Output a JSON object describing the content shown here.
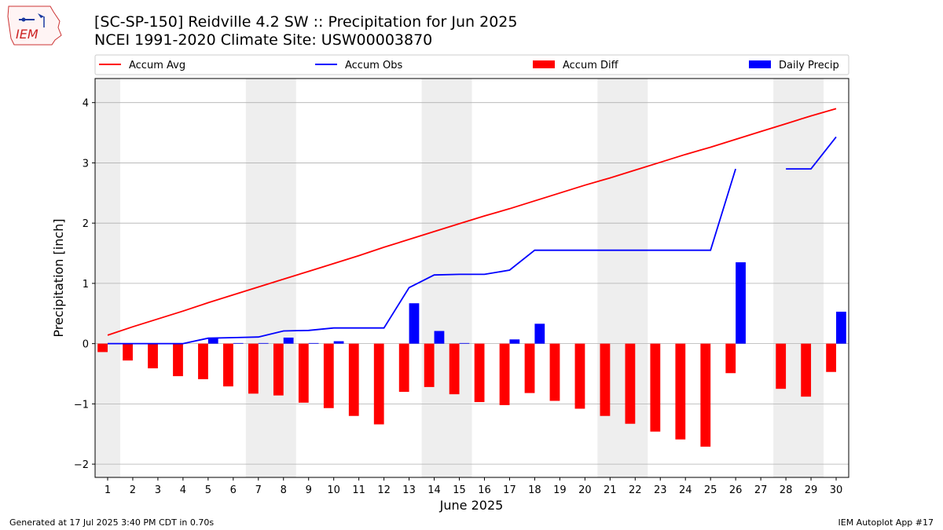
{
  "header": {
    "title": "[SC-SP-150] Reidville 4.2 SW :: Precipitation for Jun 2025",
    "subtitle": "NCEI 1991-2020 Climate Site: USW00003870"
  },
  "logo": {
    "text": "IEM"
  },
  "footer": {
    "generated": "Generated at 17 Jul 2025 3:40 PM CDT in 0.70s",
    "app": "IEM Autoplot App #17"
  },
  "colors": {
    "accum_avg": "#ff0000",
    "accum_obs": "#0000ff",
    "accum_diff": "#ff0000",
    "daily_precip": "#0000ff",
    "weekend_shade": "#eeeeee",
    "grid": "#b0b0b0"
  },
  "chart_data": {
    "type": "bar",
    "xlabel": "June 2025",
    "ylabel": "Precipitation [inch]",
    "xlim": [
      0.5,
      30.5
    ],
    "ylim": [
      -2.22,
      4.4
    ],
    "grid": "horizontal",
    "legend_placement": "top",
    "x": [
      1,
      2,
      3,
      4,
      5,
      6,
      7,
      8,
      9,
      10,
      11,
      12,
      13,
      14,
      15,
      16,
      17,
      18,
      19,
      20,
      21,
      22,
      23,
      24,
      25,
      26,
      27,
      28,
      29,
      30
    ],
    "x_tick_labels": [
      "1",
      "2",
      "3",
      "4",
      "5",
      "6",
      "7",
      "8",
      "9",
      "10",
      "11",
      "12",
      "13",
      "14",
      "15",
      "16",
      "17",
      "18",
      "19",
      "20",
      "21",
      "22",
      "23",
      "24",
      "25",
      "26",
      "27",
      "28",
      "29",
      "30"
    ],
    "y_ticks": [
      -2,
      -1,
      0,
      1,
      2,
      3,
      4
    ],
    "y_tick_labels": [
      "−2",
      "−1",
      "0",
      "1",
      "2",
      "3",
      "4"
    ],
    "weekend_spans": [
      [
        0.5,
        1.5
      ],
      [
        6.5,
        8.5
      ],
      [
        13.5,
        15.5
      ],
      [
        20.5,
        22.5
      ],
      [
        27.5,
        29.5
      ]
    ],
    "series": [
      {
        "name": "Accum Avg",
        "type": "line",
        "values": [
          0.14,
          0.28,
          0.41,
          0.54,
          0.68,
          0.81,
          0.94,
          1.07,
          1.2,
          1.33,
          1.46,
          1.6,
          1.73,
          1.86,
          1.99,
          2.12,
          2.24,
          2.37,
          2.5,
          2.63,
          2.75,
          2.88,
          3.01,
          3.14,
          3.26,
          3.39,
          3.52,
          3.65,
          3.78,
          3.9
        ]
      },
      {
        "name": "Accum Obs",
        "type": "line",
        "values": [
          0.0,
          0.0,
          0.0,
          0.0,
          0.09,
          0.1,
          0.11,
          0.21,
          0.22,
          0.26,
          0.26,
          0.26,
          0.93,
          1.14,
          1.15,
          1.15,
          1.22,
          1.55,
          1.55,
          1.55,
          1.55,
          1.55,
          1.55,
          1.55,
          1.55,
          2.9,
          null,
          2.9,
          2.9,
          3.43
        ]
      },
      {
        "name": "Accum Diff",
        "type": "bar",
        "values": [
          -0.14,
          -0.28,
          -0.41,
          -0.54,
          -0.59,
          -0.71,
          -0.83,
          -0.86,
          -0.98,
          -1.07,
          -1.2,
          -1.34,
          -0.8,
          -0.72,
          -0.84,
          -0.97,
          -1.02,
          -0.82,
          -0.95,
          -1.08,
          -1.2,
          -1.33,
          -1.46,
          -1.59,
          -1.71,
          -0.49,
          null,
          -0.75,
          -0.88,
          -0.47
        ]
      },
      {
        "name": "Daily Precip",
        "type": "bar",
        "values": [
          0.0,
          0.0,
          0.0,
          0.0,
          0.09,
          0.01,
          0.01,
          0.1,
          0.01,
          0.04,
          0.0,
          0.0,
          0.67,
          0.21,
          0.01,
          0.0,
          0.07,
          0.33,
          0.0,
          0.0,
          0.0,
          0.0,
          0.0,
          0.0,
          0.0,
          1.35,
          null,
          0.0,
          0.0,
          0.53
        ]
      }
    ]
  }
}
